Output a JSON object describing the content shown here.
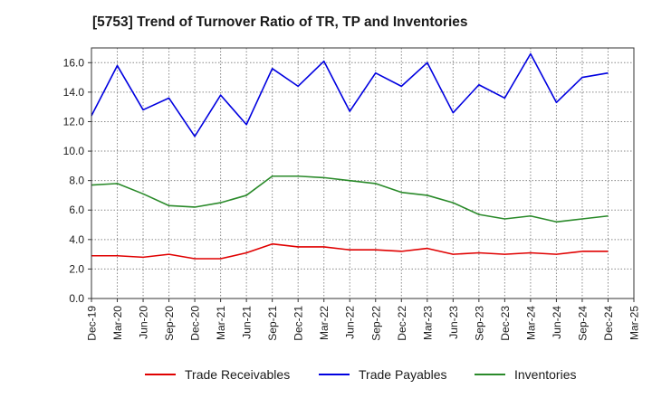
{
  "chart_data": {
    "type": "line",
    "title": "[5753]  Trend of Turnover Ratio of TR, TP and Inventories",
    "xlabel": "",
    "ylabel": "",
    "ylim": [
      0,
      17
    ],
    "yticks": [
      "0.0",
      "2.0",
      "4.0",
      "6.0",
      "8.0",
      "10.0",
      "12.0",
      "14.0",
      "16.0"
    ],
    "ytick_values": [
      0,
      2,
      4,
      6,
      8,
      10,
      12,
      14,
      16
    ],
    "xtick_labels": [
      "Dec-19",
      "Mar-20",
      "Jun-20",
      "Sep-20",
      "Dec-20",
      "Mar-21",
      "Jun-21",
      "Sep-21",
      "Dec-21",
      "Mar-22",
      "Jun-22",
      "Sep-22",
      "Dec-22",
      "Mar-23",
      "Jun-23",
      "Sep-23",
      "Dec-23",
      "Mar-24",
      "Jun-24",
      "Sep-24",
      "Dec-24",
      "Mar-25"
    ],
    "x": [
      "Dec-19",
      "Mar-20",
      "Jun-20",
      "Sep-20",
      "Dec-20",
      "Mar-21",
      "Jun-21",
      "Sep-21",
      "Dec-21",
      "Mar-22",
      "Jun-22",
      "Sep-22",
      "Dec-22",
      "Mar-23",
      "Jun-23",
      "Sep-23",
      "Dec-23",
      "Mar-24",
      "Jun-24",
      "Sep-24",
      "Dec-24"
    ],
    "grid": true,
    "legend_position": "bottom",
    "series": [
      {
        "name": "Trade Receivables",
        "color": "#e00000",
        "values": [
          2.9,
          2.9,
          2.8,
          3.0,
          2.7,
          2.7,
          3.1,
          3.7,
          3.5,
          3.5,
          3.3,
          3.3,
          3.2,
          3.4,
          3.0,
          3.1,
          3.0,
          3.1,
          3.0,
          3.2,
          3.2
        ]
      },
      {
        "name": "Trade Payables",
        "color": "#0000e0",
        "values": [
          12.4,
          15.8,
          12.8,
          13.6,
          11.0,
          13.8,
          11.8,
          15.6,
          14.4,
          16.1,
          12.7,
          15.3,
          14.4,
          16.0,
          12.6,
          14.5,
          13.6,
          16.6,
          13.3,
          15.0,
          15.3
        ]
      },
      {
        "name": "Inventories",
        "color": "#2a8a2a",
        "values": [
          7.7,
          7.8,
          7.1,
          6.3,
          6.2,
          6.5,
          7.0,
          8.3,
          8.3,
          8.2,
          8.0,
          7.8,
          7.2,
          7.0,
          6.5,
          5.7,
          5.4,
          5.6,
          5.2,
          5.4,
          5.6
        ]
      }
    ]
  }
}
